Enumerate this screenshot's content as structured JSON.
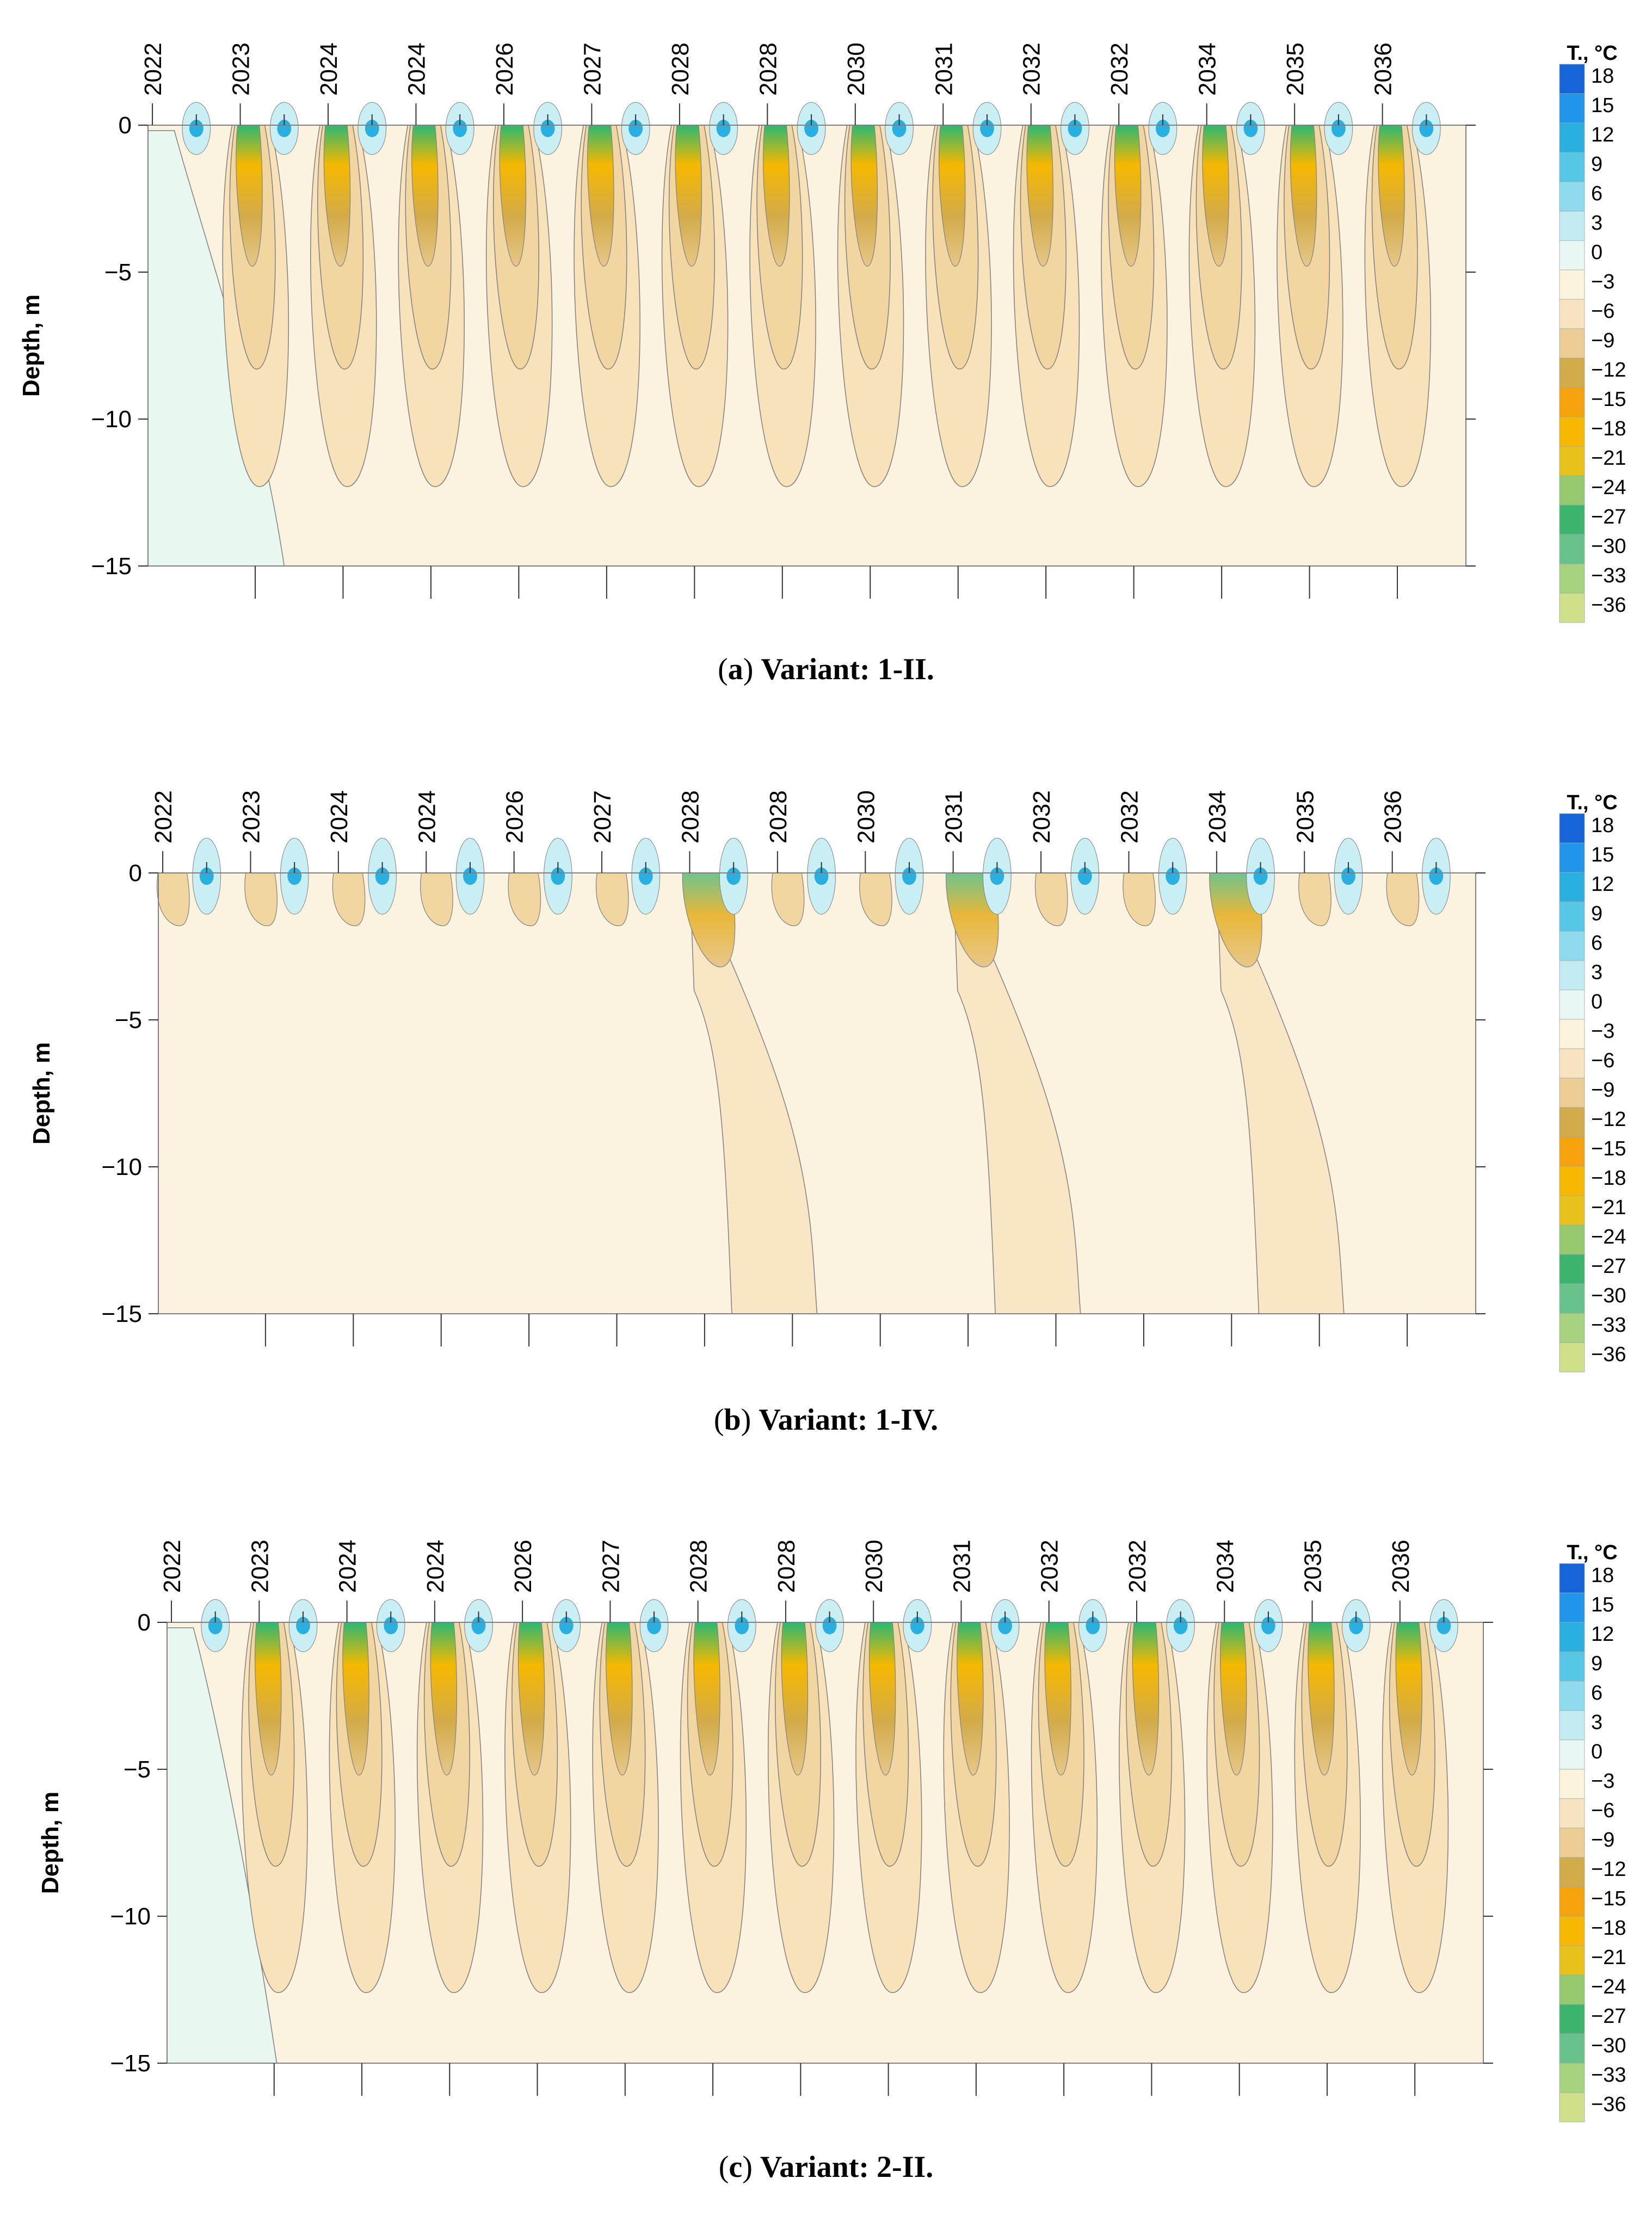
{
  "chart_data": [
    {
      "type": "heatmap",
      "title": "Variant: 1-II.",
      "caption_letter": "a",
      "caption_text": "Variant: 1-II.",
      "ylabel": "Depth, m",
      "ylim": [
        -15,
        0
      ],
      "yticks": [
        "0",
        "−5",
        "−10",
        "−15"
      ],
      "ytick_values": [
        0,
        -5,
        -10,
        -15
      ],
      "years": [
        "2022",
        "2023",
        "2024",
        "2024",
        "2026",
        "2027",
        "2028",
        "2028",
        "2030",
        "2031",
        "2032",
        "2032",
        "2034",
        "2035",
        "2036"
      ],
      "colorbar_title": "T., °C",
      "pattern": "annual deep freezing every year"
    },
    {
      "type": "heatmap",
      "title": "Variant: 1-IV.",
      "caption_letter": "b",
      "caption_text": "Variant: 1-IV.",
      "ylabel": "Depth, m",
      "ylim": [
        -15,
        0
      ],
      "yticks": [
        "0",
        "−5",
        "−10",
        "−15"
      ],
      "ytick_values": [
        0,
        -5,
        -10,
        -15
      ],
      "years": [
        "2022",
        "2023",
        "2024",
        "2024",
        "2026",
        "2027",
        "2028",
        "2028",
        "2030",
        "2031",
        "2032",
        "2032",
        "2034",
        "2035",
        "2036"
      ],
      "colorbar_title": "T., °C",
      "pattern": "deep freezing bands in 2028, 2031, 2034"
    },
    {
      "type": "heatmap",
      "title": "Variant: 2-II.",
      "caption_letter": "c",
      "caption_text": "Variant: 2-II.",
      "ylabel": "Depth, m",
      "ylim": [
        -15,
        0
      ],
      "yticks": [
        "0",
        "−5",
        "−10",
        "−15"
      ],
      "ytick_values": [
        0,
        -5,
        -10,
        -15
      ],
      "years": [
        "2022",
        "2023",
        "2024",
        "2024",
        "2026",
        "2027",
        "2028",
        "2028",
        "2030",
        "2031",
        "2032",
        "2032",
        "2034",
        "2035",
        "2036"
      ],
      "colorbar_title": "T., °C",
      "pattern": "annual deep freezing every year, stronger"
    }
  ],
  "colorbar": {
    "labels": [
      "18",
      "15",
      "12",
      "9",
      "6",
      "3",
      "0",
      "−3",
      "−6",
      "−9",
      "−12",
      "−15",
      "−18",
      "−21",
      "−24",
      "−27",
      "−30",
      "−33",
      "−36"
    ],
    "values": [
      18,
      15,
      12,
      9,
      6,
      3,
      0,
      -3,
      -6,
      -9,
      -12,
      -15,
      -18,
      -21,
      -24,
      -27,
      -30,
      -33,
      -36
    ],
    "colors": [
      "#1565d8",
      "#2196e8",
      "#29b0e0",
      "#56c8e6",
      "#8fdaec",
      "#c3ecf2",
      "#e9f7f4",
      "#fbf3dc",
      "#f7e3bf",
      "#ebcd95",
      "#d2ab4a",
      "#f4a30d",
      "#f6b800",
      "#e7c21a",
      "#96c86e",
      "#3cb46e",
      "#66c28a",
      "#a7d27e",
      "#cfe08a"
    ]
  },
  "colors": {
    "outline": "#808080",
    "background_mint": "#e8f7f0",
    "base_fill": "#fbf3e0",
    "band_fill": "#f8e6c4"
  }
}
